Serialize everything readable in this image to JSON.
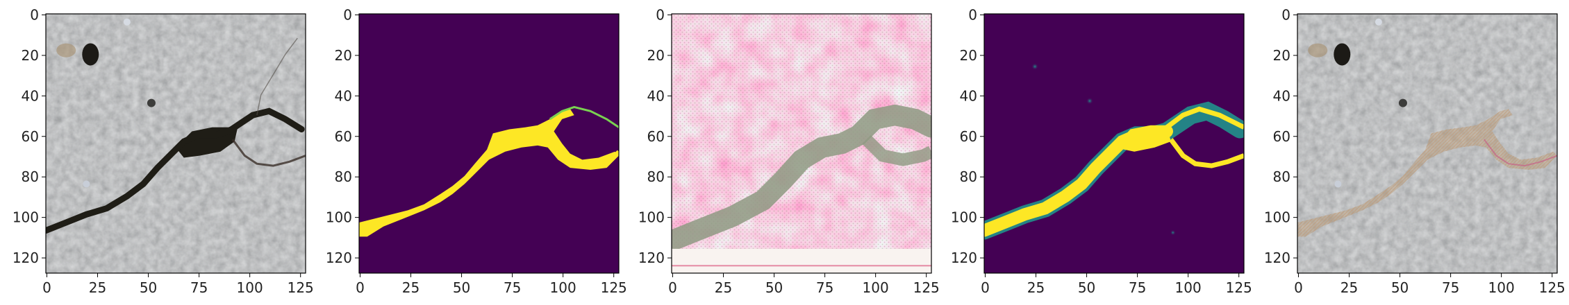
{
  "panels": [
    {
      "kind": "photo",
      "xticks": [
        "0",
        "25",
        "50",
        "75",
        "100",
        "125"
      ],
      "yticks": [
        "0",
        "20",
        "40",
        "60",
        "80",
        "100",
        "120"
      ]
    },
    {
      "kind": "mask",
      "xticks": [
        "0",
        "25",
        "50",
        "75",
        "100",
        "125"
      ],
      "yticks": [
        "0",
        "20",
        "40",
        "60",
        "80",
        "100",
        "120"
      ]
    },
    {
      "kind": "gradient",
      "xticks": [
        "0",
        "25",
        "50",
        "75",
        "100",
        "125"
      ],
      "yticks": [
        "0",
        "20",
        "40",
        "60",
        "80",
        "100",
        "120"
      ]
    },
    {
      "kind": "prediction",
      "xticks": [
        "0",
        "25",
        "50",
        "75",
        "100",
        "125"
      ],
      "yticks": [
        "0",
        "20",
        "40",
        "60",
        "80",
        "100",
        "120"
      ]
    },
    {
      "kind": "overlay",
      "xticks": [
        "0",
        "25",
        "50",
        "75",
        "100",
        "125"
      ],
      "yticks": [
        "0",
        "20",
        "40",
        "60",
        "80",
        "100",
        "120"
      ]
    }
  ],
  "colors": {
    "viridis_low": "#440154",
    "viridis_high": "#fde725",
    "viridis_mid": "#21918c",
    "concrete": "#8a8a88",
    "crack": "#1f1d16"
  }
}
